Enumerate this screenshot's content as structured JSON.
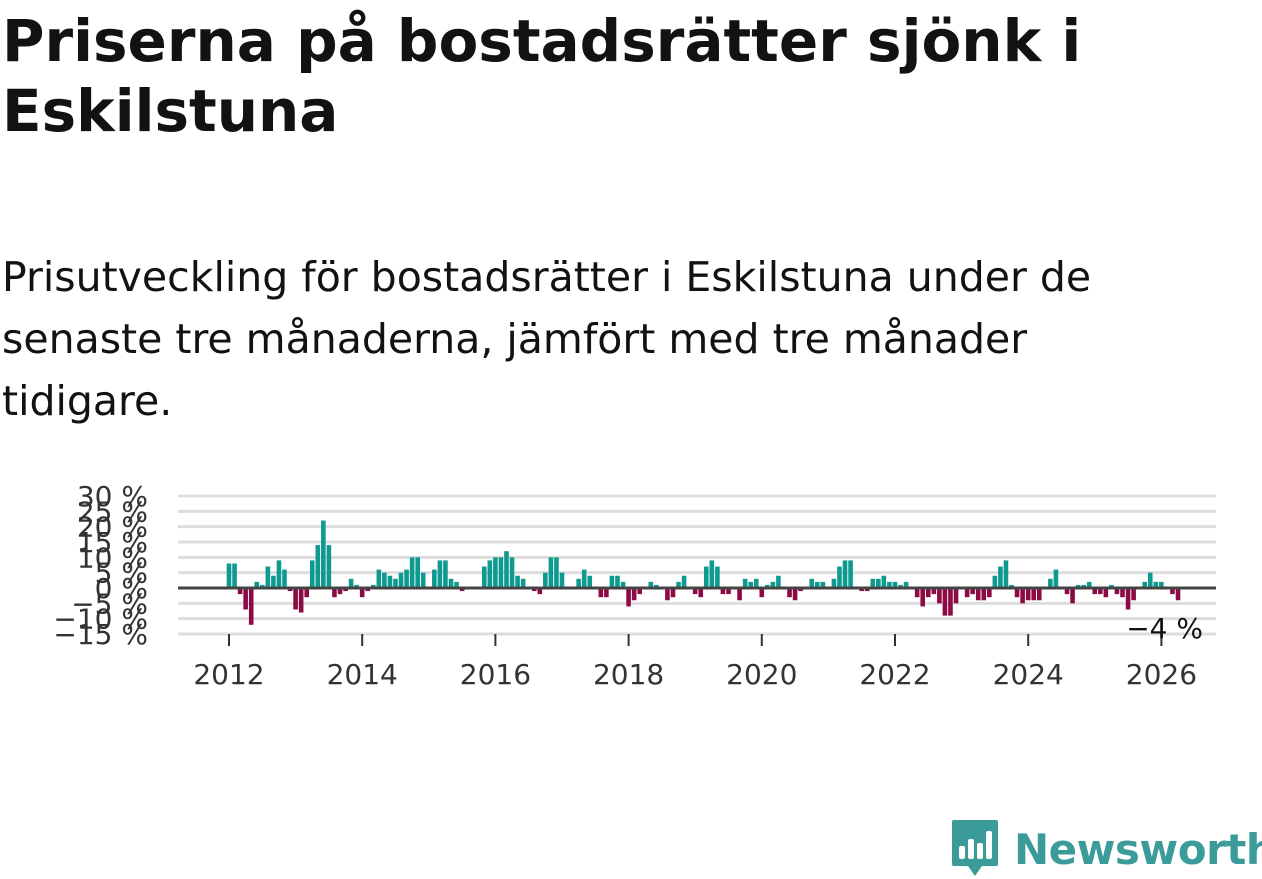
{
  "header": {
    "title": "Priserna på bostadsrätter sjönk i Eskilstuna",
    "subtitle": "Prisutveckling för bostadsrätter i Eskilstuna under de senaste tre månaderna, jämfört med tre månader tidigare."
  },
  "brand": {
    "name": "Newsworthy",
    "color": "#3a9b98"
  },
  "colors": {
    "positive": "#0f9a90",
    "negative": "#8c0b44",
    "grid": "#dddddd",
    "zero": "#444444"
  },
  "chart_data": {
    "type": "bar",
    "title": "",
    "xlabel": "",
    "ylabel": "",
    "ylim": [
      -15,
      30
    ],
    "y_ticks": [
      30,
      25,
      20,
      15,
      10,
      5,
      0,
      -5,
      -10,
      -15
    ],
    "y_tick_labels": [
      "30 %",
      "25 %",
      "20 %",
      "15 %",
      "10 %",
      "5 %",
      "0 %",
      "−5 %",
      "−10 %",
      "−15 %"
    ],
    "x_ticks": [
      2012,
      2014,
      2016,
      2018,
      2020,
      2022,
      2024,
      2026
    ],
    "x_tick_labels": [
      "2012",
      "2014",
      "2016",
      "2018",
      "2020",
      "2022",
      "2024",
      "2026"
    ],
    "start": 2012.0,
    "step": 0.08333,
    "values": [
      8,
      8,
      -2,
      -7,
      -12,
      2,
      1,
      7,
      4,
      9,
      6,
      -1,
      -7,
      -8,
      -3,
      9,
      14,
      22,
      14,
      -3,
      -2,
      -1,
      3,
      1,
      -3,
      -1,
      1,
      6,
      5,
      4,
      3,
      5,
      6,
      10,
      10,
      5,
      0,
      6,
      9,
      9,
      3,
      2,
      -1,
      0,
      0,
      0,
      7,
      9,
      10,
      10,
      12,
      10,
      4,
      3,
      0,
      -1,
      -2,
      5,
      10,
      10,
      5,
      0,
      0,
      3,
      6,
      4,
      0,
      -3,
      -3,
      4,
      4,
      2,
      -6,
      -4,
      -2,
      0,
      2,
      1,
      0,
      -4,
      -3,
      2,
      4,
      0,
      -2,
      -3,
      7,
      9,
      7,
      -2,
      -2,
      0,
      -4,
      3,
      2,
      3,
      -3,
      1,
      2,
      4,
      0,
      -3,
      -4,
      -1,
      0,
      3,
      2,
      2,
      0,
      3,
      7,
      9,
      9,
      0,
      -1,
      -1,
      3,
      3,
      4,
      2,
      2,
      1,
      2,
      0,
      -3,
      -6,
      -3,
      -2,
      -5,
      -9,
      -9,
      -5,
      0,
      -3,
      -2,
      -4,
      -4,
      -3,
      4,
      7,
      9,
      1,
      -3,
      -5,
      -4,
      -4,
      -4,
      0,
      3,
      6,
      0,
      -2,
      -5,
      1,
      1,
      2,
      -2,
      -2,
      -3,
      1,
      -2,
      -3,
      -7,
      -4,
      0,
      2,
      5,
      2,
      2,
      0,
      -2,
      -4
    ],
    "annotation": "−4 %"
  }
}
